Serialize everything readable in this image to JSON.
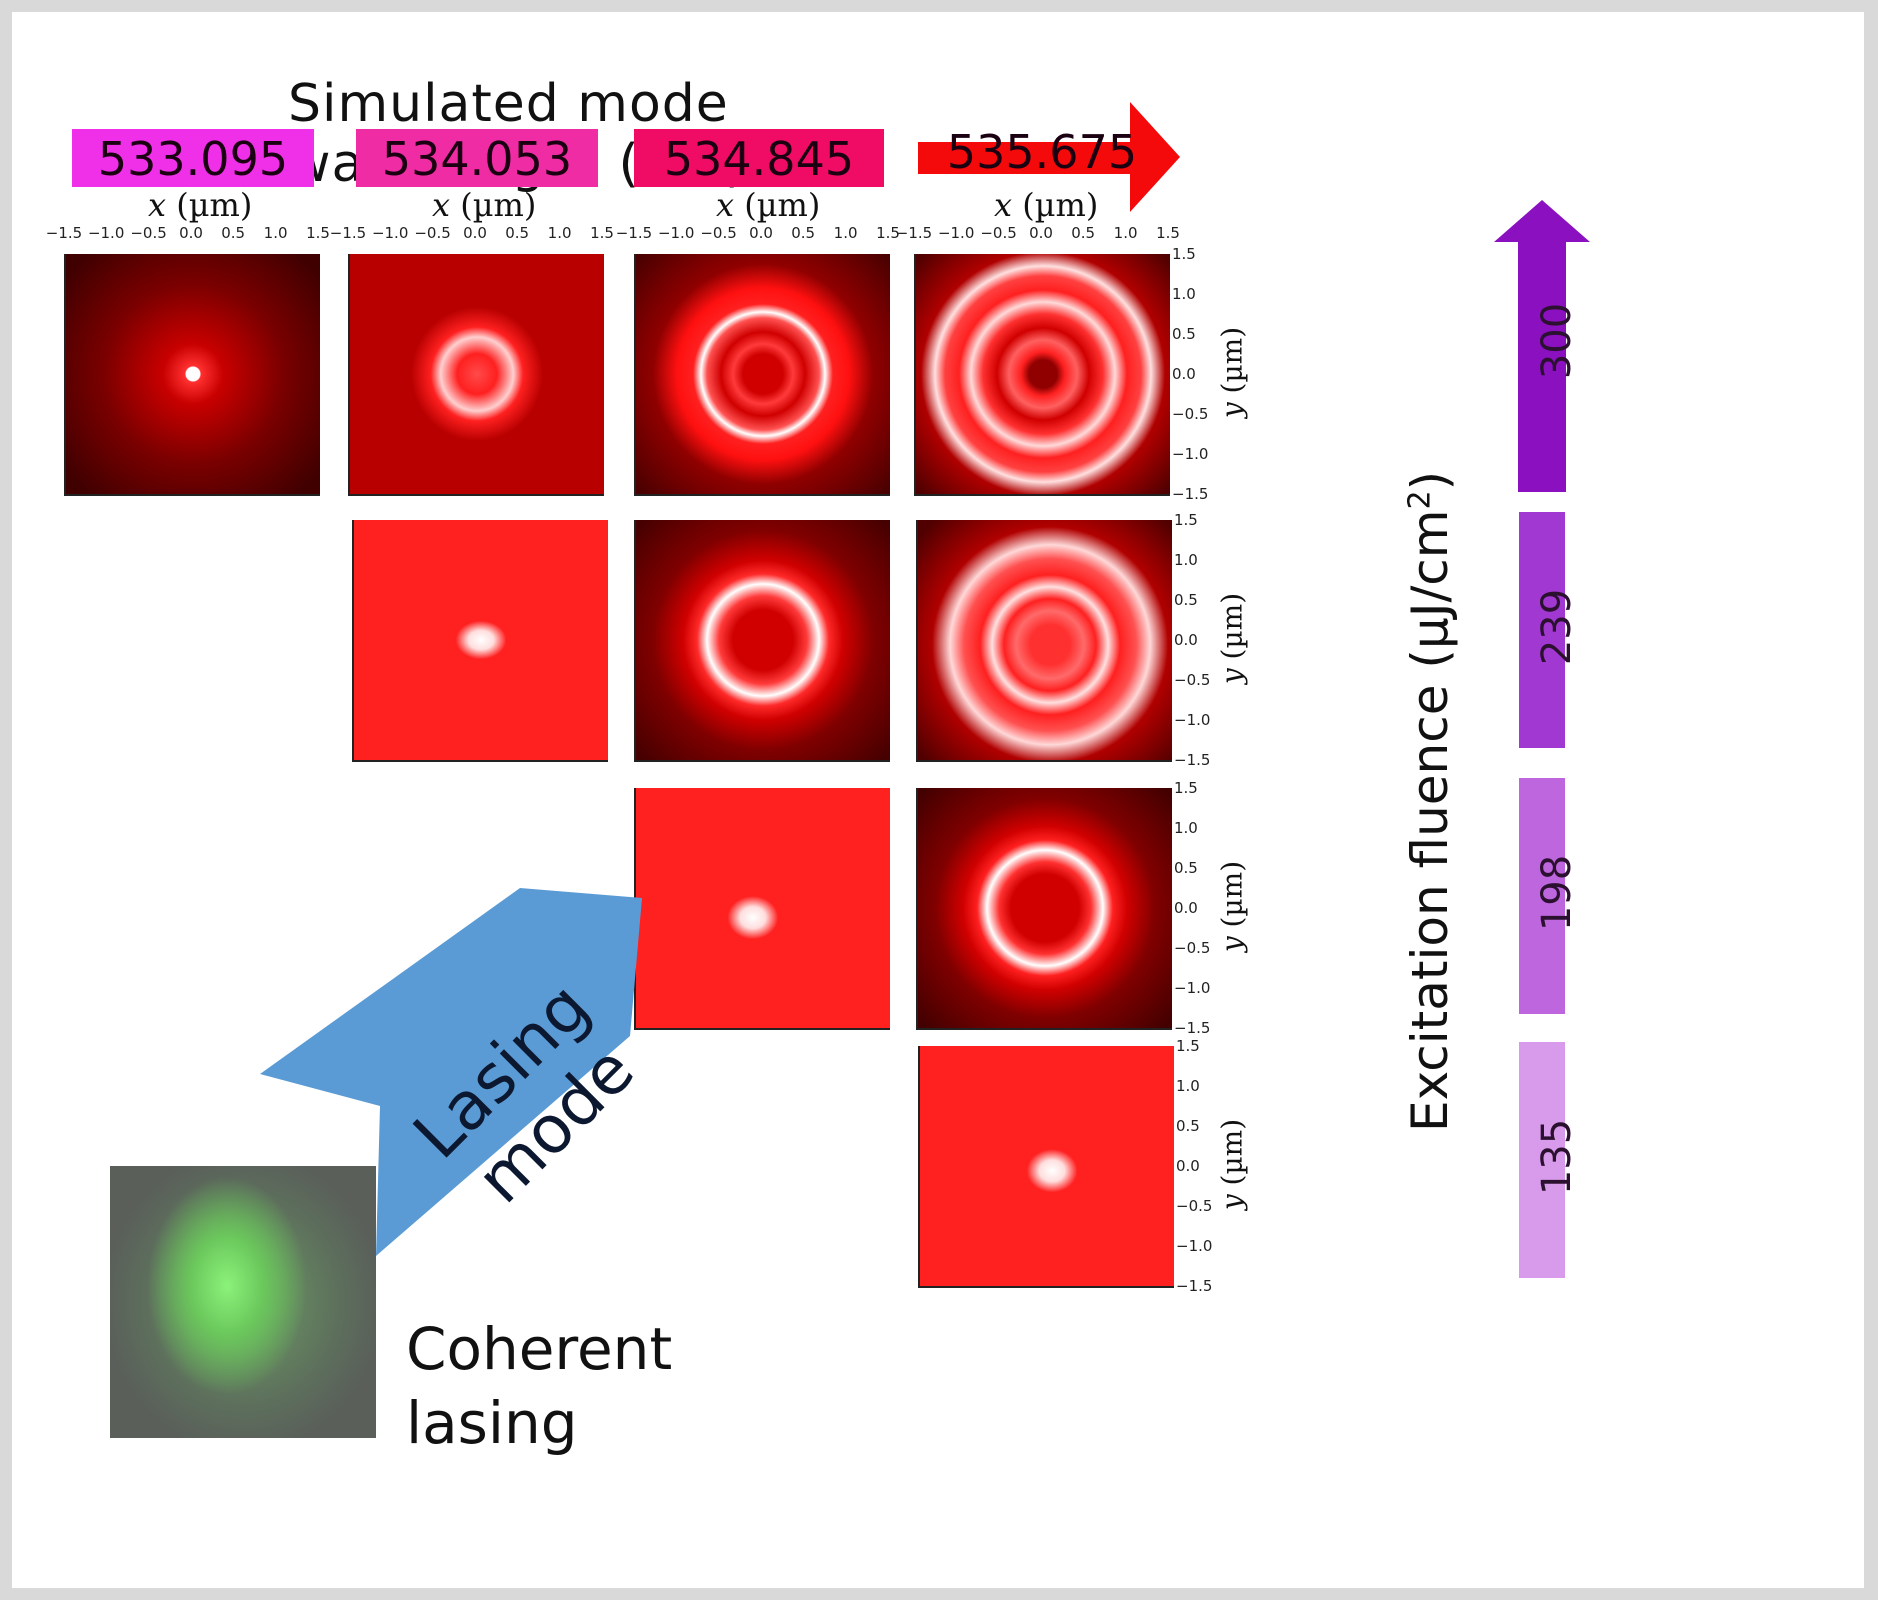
{
  "title": "Simulated mode wavelength (nm)",
  "wavelengths": [
    {
      "value": "533.095",
      "color": "#f030e8"
    },
    {
      "value": "534.053",
      "color": "#f02ca4"
    },
    {
      "value": "534.845",
      "color": "#f00c64"
    },
    {
      "value": "535.675",
      "color": "#f40a0a"
    }
  ],
  "x_axis_label": "(µm)",
  "x_axis_var": "x",
  "y_axis_label": "(µm)",
  "y_axis_var": "y",
  "x_ticks": [
    "−1.5",
    "−1.0",
    "−0.5",
    "0.0",
    "0.5",
    "1.0",
    "1.5"
  ],
  "y_ticks": [
    "1.5",
    "1.0",
    "0.5",
    "0.0",
    "−0.5",
    "−1.0",
    "−1.5"
  ],
  "fluence_title": "Excitation fluence (µJ/cm",
  "fluence_title_sup": "2",
  "fluence_title_end": ")",
  "fluences": [
    {
      "value": "300",
      "color": "#8a10c0"
    },
    {
      "value": "239",
      "color": "#a238d2"
    },
    {
      "value": "198",
      "color": "#be66de"
    },
    {
      "value": "135",
      "color": "#d89aea"
    }
  ],
  "lasing_mode_line1": "Lasing",
  "lasing_mode_line2": "mode",
  "coherent_line1": "Coherent",
  "coherent_line2": "lasing",
  "colors": {
    "arrow_blue": "#5b9bd5",
    "panel_dark": "#3a0000",
    "panel_red": "#ff1010"
  }
}
